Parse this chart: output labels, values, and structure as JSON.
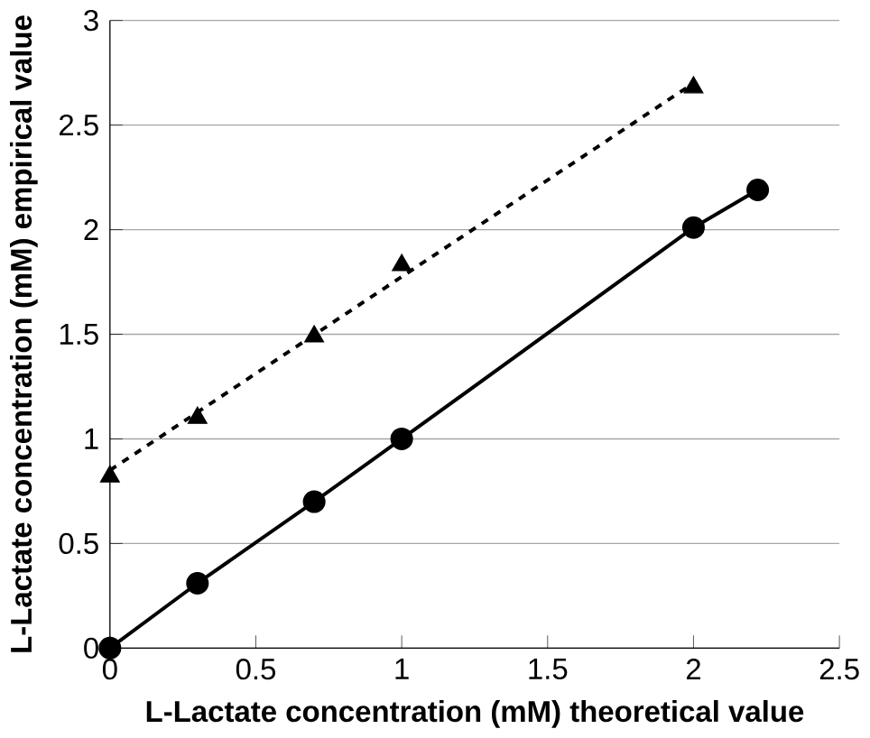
{
  "chart_data": {
    "type": "scatter",
    "xlabel": "L-Lactate concentration (mM) theoretical value",
    "ylabel": "L-Lactate concentration (mM) empirical value",
    "xlim": [
      0,
      2.5
    ],
    "xticks": [
      0,
      0.5,
      1,
      1.5,
      2,
      2.5
    ],
    "ylim": [
      0,
      3
    ],
    "yticks": [
      0,
      0.5,
      1,
      1.5,
      2,
      2.5,
      3
    ],
    "grid": "y",
    "series": [
      {
        "type": "line",
        "marker": "circle",
        "line_style": "solid",
        "color": "#000000",
        "x": [
          0,
          0.3,
          0.7,
          1,
          2,
          2.22
        ],
        "values": [
          0,
          0.31,
          0.7,
          1,
          2.01,
          2.19
        ]
      },
      {
        "marker": "triangle",
        "color": "#000000",
        "x": [
          0,
          0.3,
          0.7,
          1,
          2
        ],
        "values": [
          0.82,
          1.1,
          1.49,
          1.83,
          2.68
        ]
      },
      {
        "type": "line",
        "marker": "none",
        "line_style": "dotted",
        "color": "#000000",
        "x": [
          0,
          2
        ],
        "values": [
          0.85,
          2.7
        ]
      }
    ]
  }
}
